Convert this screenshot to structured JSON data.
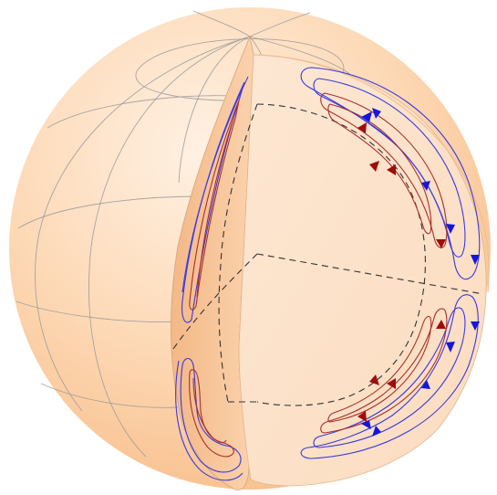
{
  "diagram": {
    "colors": {
      "background": "#ffffff",
      "sphere_outer": "#fbc99b",
      "sphere_mid": "#fdd9b6",
      "sphere_highlight": "#fff1e3",
      "cut_face_left": "#f9c79c",
      "cut_face_right": "#fde6cf",
      "grid_line": "#9a9a9a",
      "dashed_line": "#333333",
      "blue_flow": "#3a3adf",
      "red_flow": "#a8312b",
      "blue_arrow": "#1515e0",
      "red_arrow": "#a00c0c"
    },
    "elements": {
      "sphere": "sphere",
      "latitude_lines": "latitude-lines",
      "longitude_lines": "longitude-lines",
      "cutaway": "cutaway-section",
      "inner_boundary": "inner-core-boundary",
      "flow_cells": "flow-cells"
    },
    "arrow_icons": [
      "triangle-arrow-blue",
      "triangle-arrow-red"
    ]
  }
}
